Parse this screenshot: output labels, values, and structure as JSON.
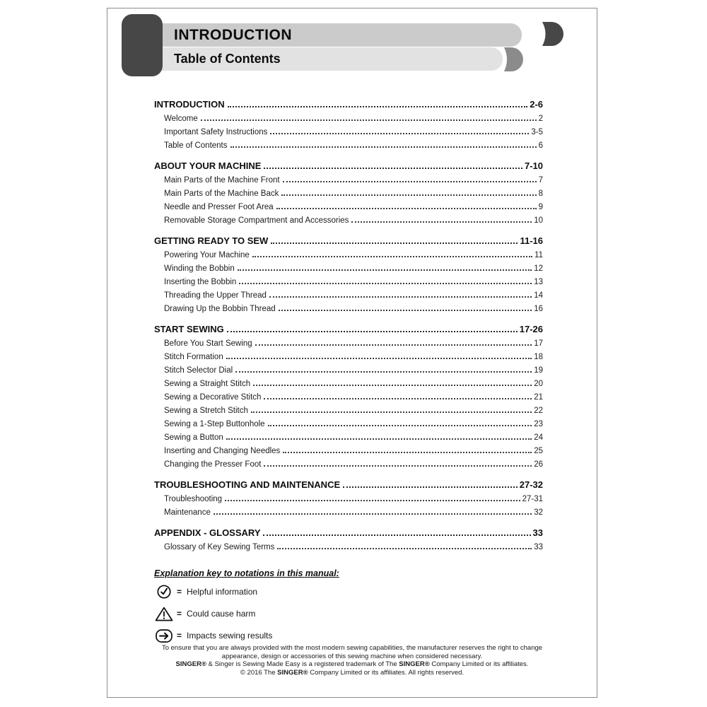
{
  "colors": {
    "header_block_dark": "#474747",
    "header_bar_gray": "#cbcbcb",
    "header_bar_light": "#e2e2e2",
    "header_tab_gray": "#8b8b8b"
  },
  "header": {
    "title": "INTRODUCTION",
    "subtitle": "Table of Contents"
  },
  "toc": {
    "sections": [
      {
        "title": "INTRODUCTION",
        "pages": "2-6",
        "items": [
          {
            "label": "Welcome",
            "page": "2"
          },
          {
            "label": "Important Safety Instructions",
            "page": "3-5"
          },
          {
            "label": "Table of Contents",
            "page": "6"
          }
        ]
      },
      {
        "title": "ABOUT YOUR MACHINE",
        "pages": "7-10",
        "items": [
          {
            "label": "Main Parts of the Machine Front",
            "page": "7"
          },
          {
            "label": "Main Parts of the Machine Back",
            "page": "8"
          },
          {
            "label": "Needle and Presser Foot Area",
            "page": "9"
          },
          {
            "label": "Removable Storage Compartment and Accessories",
            "page": "10"
          }
        ]
      },
      {
        "title": "GETTING READY TO SEW",
        "pages": "11-16",
        "items": [
          {
            "label": "Powering Your Machine",
            "page": "11"
          },
          {
            "label": "Winding the Bobbin",
            "page": "12"
          },
          {
            "label": "Inserting the Bobbin",
            "page": "13"
          },
          {
            "label": "Threading the Upper Thread",
            "page": "14"
          },
          {
            "label": "Drawing Up the Bobbin Thread",
            "page": "16"
          }
        ]
      },
      {
        "title": "START SEWING",
        "pages": "17-26",
        "items": [
          {
            "label": "Before You Start Sewing",
            "page": "17"
          },
          {
            "label": "Stitch Formation",
            "page": "18"
          },
          {
            "label": "Stitch Selector Dial",
            "page": "19"
          },
          {
            "label": "Sewing a Straight Stitch",
            "page": "20"
          },
          {
            "label": "Sewing a Decorative Stitch",
            "page": "21"
          },
          {
            "label": "Sewing a Stretch Stitch",
            "page": "22"
          },
          {
            "label": "Sewing a 1-Step Buttonhole",
            "page": "23"
          },
          {
            "label": "Sewing a Button",
            "page": "24"
          },
          {
            "label": "Inserting and Changing Needles",
            "page": "25"
          },
          {
            "label": "Changing the Presser Foot",
            "page": "26"
          }
        ]
      },
      {
        "title": "TROUBLESHOOTING AND MAINTENANCE",
        "pages": "27-32",
        "items": [
          {
            "label": "Troubleshooting",
            "page": "27-31"
          },
          {
            "label": "Maintenance",
            "page": "32"
          }
        ]
      },
      {
        "title": "APPENDIX - GLOSSARY",
        "pages": "33",
        "items": [
          {
            "label": "Glossary of Key Sewing Terms",
            "page": "33"
          }
        ]
      }
    ]
  },
  "key": {
    "title": "Explanation key to notations in this manual:",
    "items": [
      {
        "icon": "check-circle-icon",
        "equals": "=",
        "label": "Helpful information"
      },
      {
        "icon": "warning-triangle-icon",
        "equals": "=",
        "label": "Could cause harm"
      },
      {
        "icon": "arrow-right-icon",
        "equals": "=",
        "label": "Impacts sewing results"
      }
    ]
  },
  "footer": {
    "lines": [
      [
        {
          "t": "To ensure that you are always provided with the most modern sewing capabilities, the manufacturer reserves the right to change",
          "b": false
        }
      ],
      [
        {
          "t": "appearance, design or accessories of this sewing machine when considered necessary.",
          "b": false
        }
      ],
      [
        {
          "t": "SINGER®",
          "b": true
        },
        {
          "t": " & Singer is Sewing Made Easy is a registered trademark of The ",
          "b": false
        },
        {
          "t": "SINGER®",
          "b": true
        },
        {
          "t": " Company Limited or its affiliates.",
          "b": false
        }
      ],
      [
        {
          "t": "© 2016 The ",
          "b": false
        },
        {
          "t": "SINGER®",
          "b": true
        },
        {
          "t": " Company Limited or its affiliates. All rights reserved.",
          "b": false
        }
      ]
    ]
  }
}
